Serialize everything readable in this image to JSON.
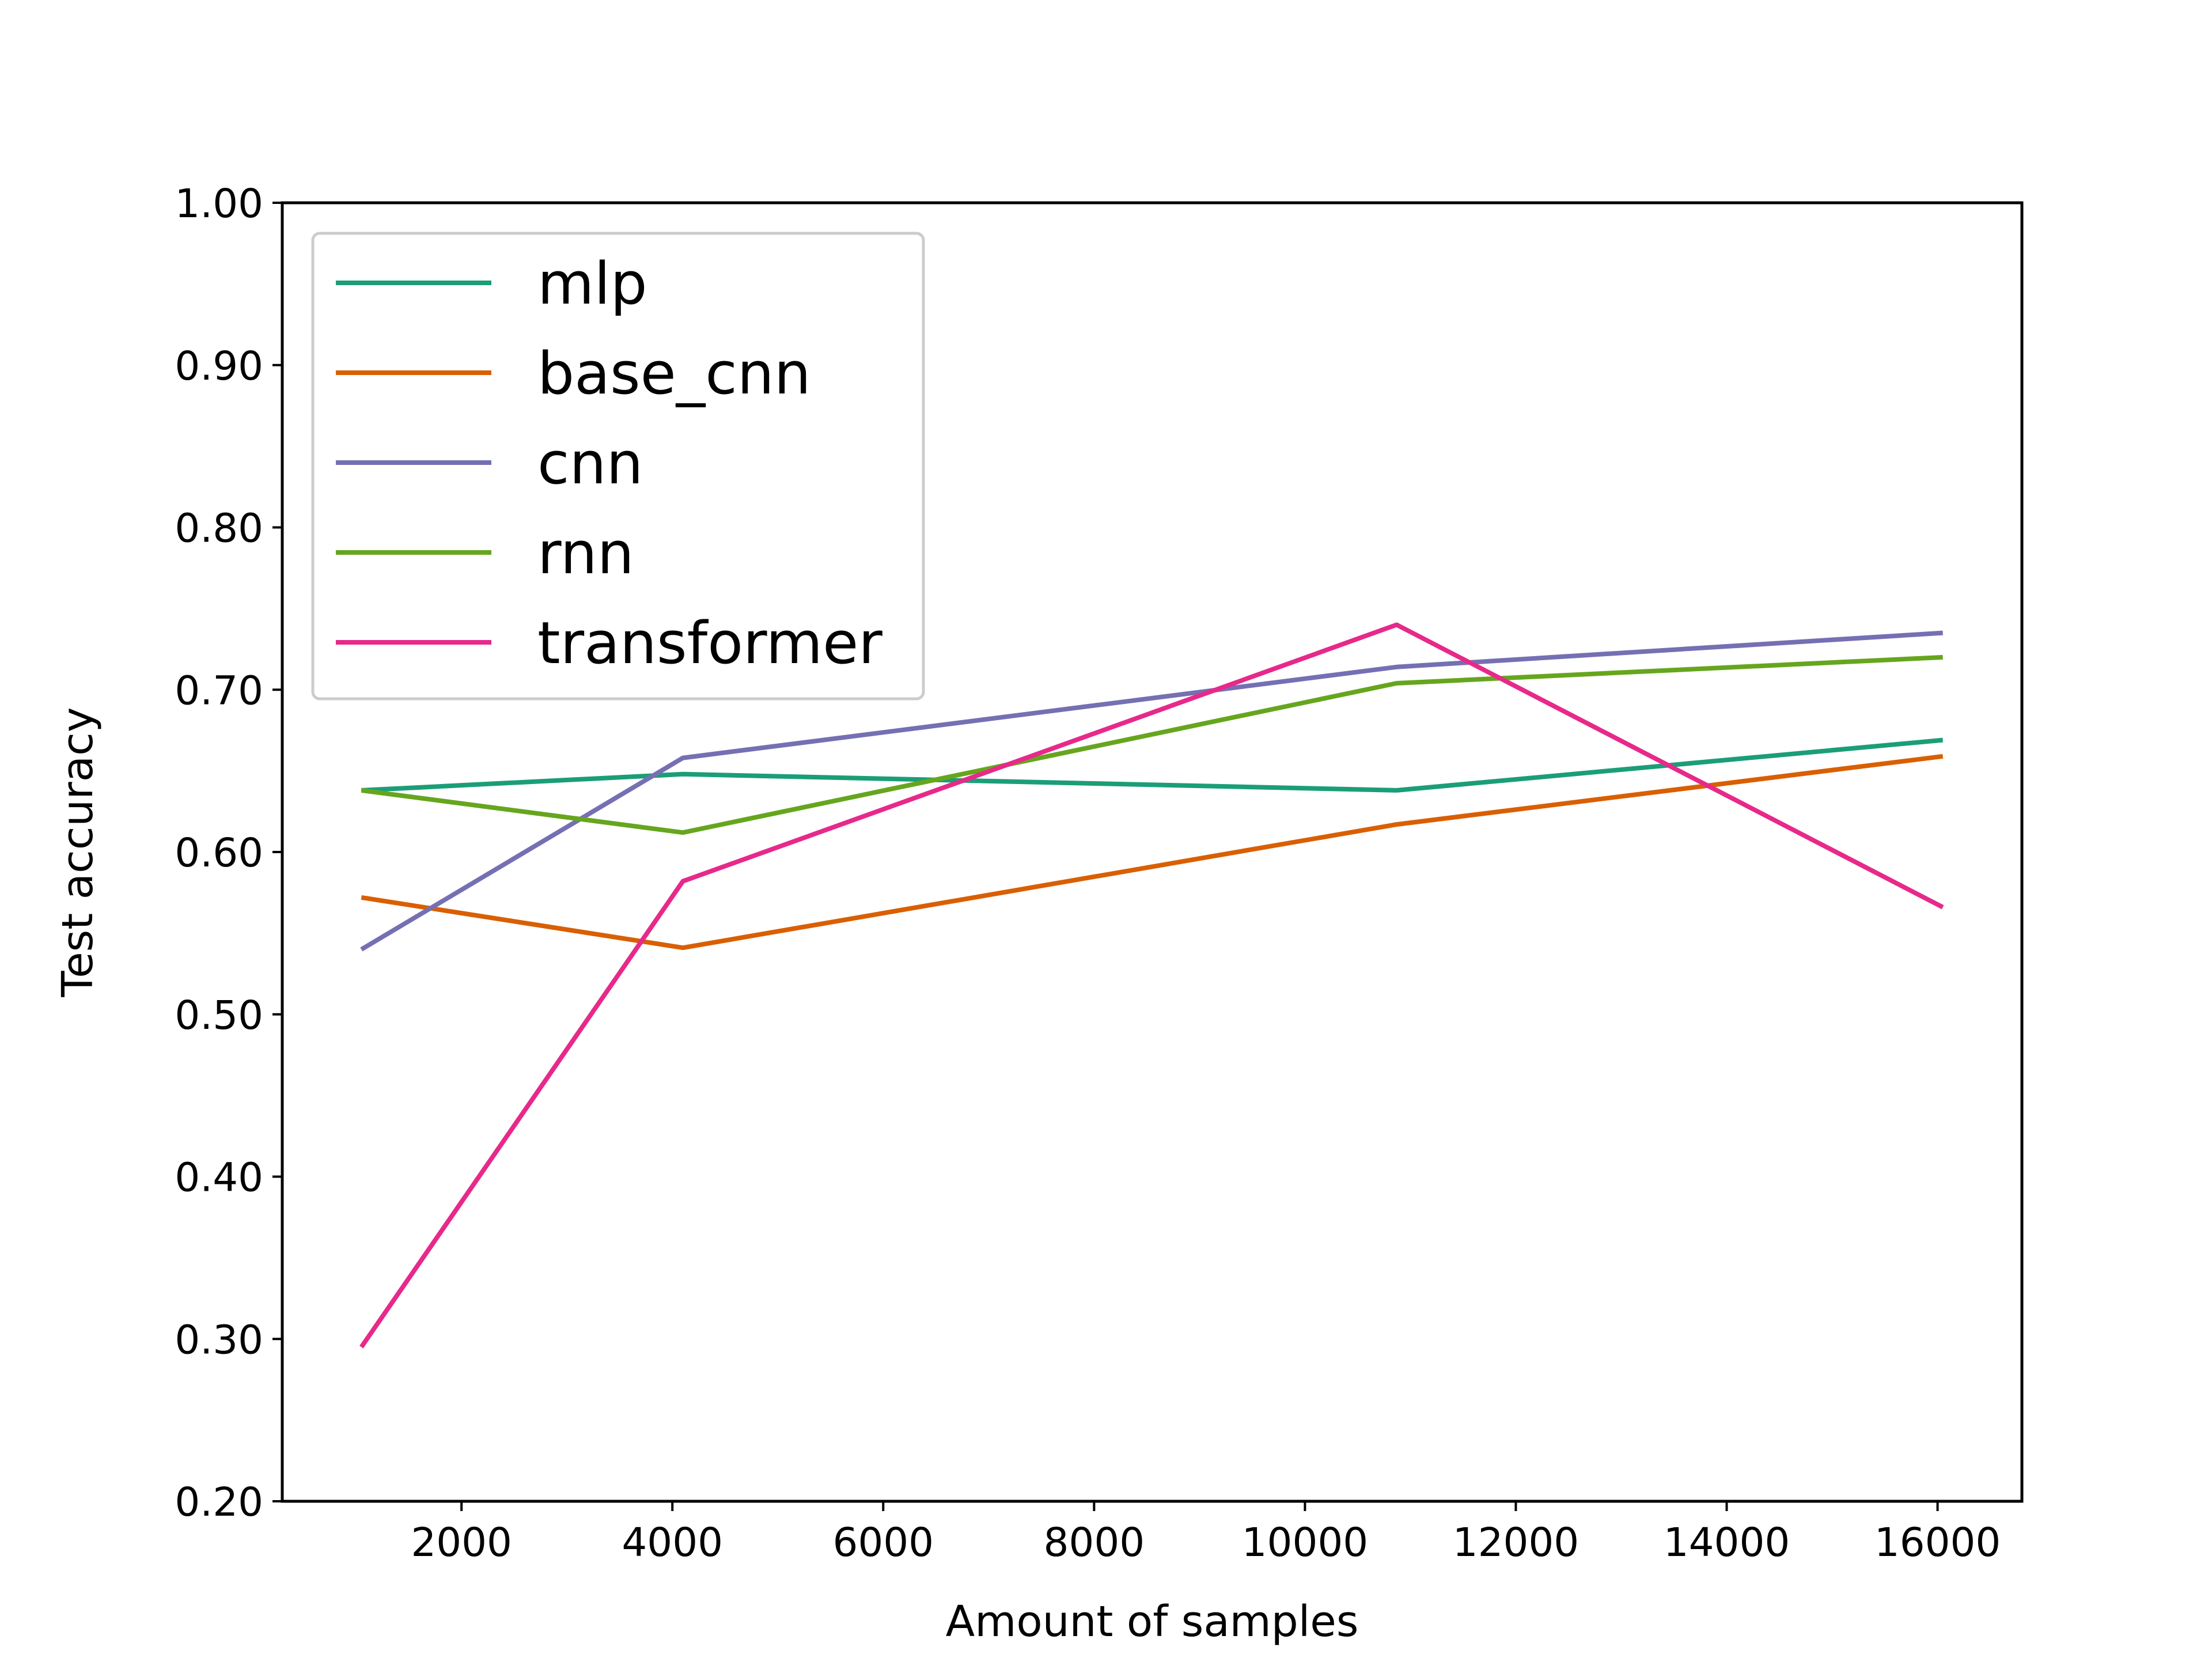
{
  "chart_data": {
    "type": "line",
    "title": "",
    "xlabel": "Amount of samples",
    "ylabel": "Test accuracy",
    "xlim": [
      300,
      16800
    ],
    "ylim": [
      0.2,
      1.0
    ],
    "xticks": [
      2000,
      4000,
      6000,
      8000,
      10000,
      12000,
      14000,
      16000
    ],
    "xtick_labels": [
      "2000",
      "4000",
      "6000",
      "8000",
      "10000",
      "12000",
      "14000",
      "16000"
    ],
    "yticks": [
      0.2,
      0.3,
      0.4,
      0.5,
      0.6,
      0.7,
      0.8,
      0.9,
      1.0
    ],
    "ytick_labels": [
      "0.20",
      "0.30",
      "0.40",
      "0.50",
      "0.60",
      "0.70",
      "0.80",
      "0.90",
      "1.00"
    ],
    "grid": false,
    "legend_position": "top-left",
    "x": [
      1050,
      4100,
      10870,
      16050
    ],
    "series": [
      {
        "name": "mlp",
        "color": "#1b9e77",
        "values": [
          0.638,
          0.648,
          0.638,
          0.669
        ]
      },
      {
        "name": "base_cnn",
        "color": "#d95f02",
        "values": [
          0.572,
          0.541,
          0.617,
          0.659
        ]
      },
      {
        "name": "cnn",
        "color": "#7570b3",
        "values": [
          0.54,
          0.658,
          0.714,
          0.735
        ]
      },
      {
        "name": "rnn",
        "color": "#66a61e",
        "values": [
          0.638,
          0.612,
          0.704,
          0.72
        ]
      },
      {
        "name": "transformer",
        "color": "#e7298a",
        "values": [
          0.295,
          0.582,
          0.74,
          0.566
        ]
      }
    ]
  }
}
